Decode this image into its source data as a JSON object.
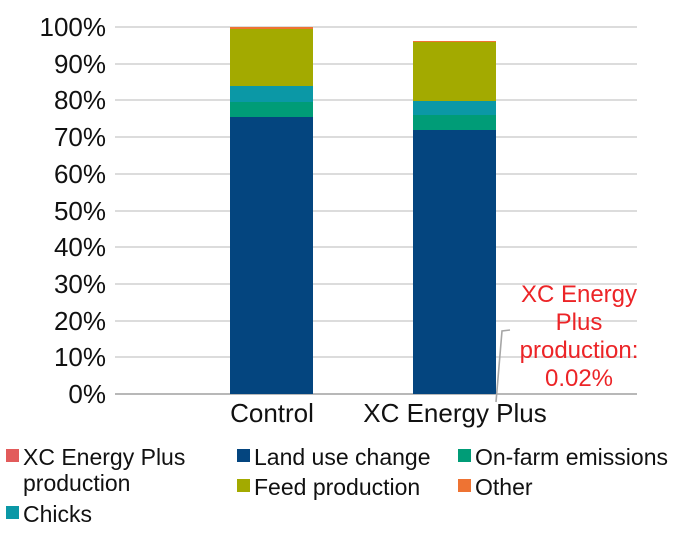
{
  "chart_data": {
    "type": "bar",
    "subtype": "stacked-100-percent-column",
    "title": "",
    "categories": [
      "Control",
      "XC Energy Plus"
    ],
    "series": [
      {
        "name": "XC Energy Plus production",
        "color": "#E25B5B",
        "values": [
          0,
          0.02
        ]
      },
      {
        "name": "Land use change",
        "color": "#04457F",
        "values": [
          75.6,
          72.0
        ]
      },
      {
        "name": "On-farm emissions",
        "color": "#009C77",
        "values": [
          4.1,
          4.1
        ]
      },
      {
        "name": "Chicks",
        "color": "#0B98A6",
        "values": [
          4.1,
          3.8
        ]
      },
      {
        "name": "Feed production",
        "color": "#A3AA00",
        "values": [
          15.7,
          16.0
        ]
      },
      {
        "name": "Other",
        "color": "#EE7333",
        "values": [
          0.5,
          0.3
        ]
      }
    ],
    "totals": {
      "control": "100%",
      "xc_energy_plus": "96.2%"
    },
    "y_ticks": [
      "0%",
      "10%",
      "20%",
      "30%",
      "40%",
      "50%",
      "60%",
      "70%",
      "80%",
      "90%",
      "100%"
    ],
    "ylim": [
      0,
      100
    ],
    "grid": "horizontal",
    "legend_position": "bottom",
    "annotation": {
      "text": "XC Energy Plus production: 0.02%",
      "color": "#EC2427",
      "points_to": "bottom of XC Energy Plus bar"
    }
  },
  "colors": {
    "gridline": "#dcdcdc",
    "axis_line": "#b8b8b8",
    "leader_line": "#a6a6a6",
    "annotation_red": "#EC2427"
  }
}
